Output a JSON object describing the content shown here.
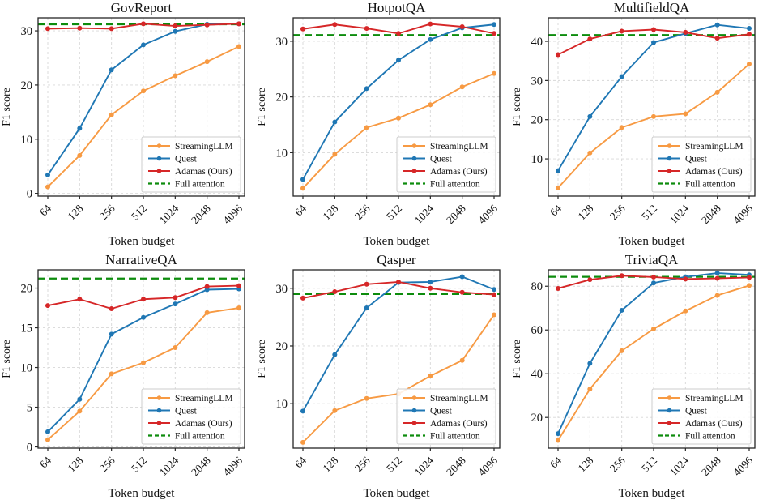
{
  "figure": {
    "rows": 2,
    "cols": 3,
    "background": "#ffffff"
  },
  "colors": {
    "streamingllm": "#f79a43",
    "quest": "#1f77b4",
    "adamas": "#d62728",
    "full_attention": "#0d8c0d",
    "grid": "#d8d8d8",
    "axis": "#262626",
    "legend_border": "#cccccc",
    "text": "#111111"
  },
  "legend": {
    "position": "lower-right",
    "items": [
      {
        "label": "StreamingLLM",
        "style": "solid-marker",
        "color_key": "streamingllm"
      },
      {
        "label": "Quest",
        "style": "solid-marker",
        "color_key": "quest"
      },
      {
        "label": "Adamas (Ours)",
        "style": "solid-marker",
        "color_key": "adamas"
      },
      {
        "label": "Full attention",
        "style": "dashed",
        "color_key": "full_attention"
      }
    ]
  },
  "axes_shared": {
    "xlabel": "Token budget",
    "ylabel": "F1 score",
    "x_tick_labels": [
      "64",
      "128",
      "256",
      "512",
      "1024",
      "2048",
      "4096"
    ],
    "grid": true
  },
  "chart_data": [
    {
      "type": "line",
      "title": "GovReport",
      "xlabel": "Token budget",
      "ylabel": "F1 score",
      "x": [
        64,
        128,
        256,
        512,
        1024,
        2048,
        4096
      ],
      "ylim": [
        -0.5,
        32.4
      ],
      "yticks": [
        0,
        10,
        20,
        30
      ],
      "full_attention": 31.2,
      "series": [
        {
          "name": "StreamingLLM",
          "color_key": "streamingllm",
          "values": [
            1.2,
            7.0,
            14.5,
            18.9,
            21.7,
            24.3,
            27.1
          ]
        },
        {
          "name": "Quest",
          "color_key": "quest",
          "values": [
            3.4,
            12.0,
            22.8,
            27.4,
            29.9,
            31.2,
            31.3
          ]
        },
        {
          "name": "Adamas (Ours)",
          "color_key": "adamas",
          "values": [
            30.4,
            30.5,
            30.4,
            31.3,
            30.9,
            31.1,
            31.3
          ]
        }
      ]
    },
    {
      "type": "line",
      "title": "HotpotQA",
      "xlabel": "Token budget",
      "ylabel": "F1 score",
      "x": [
        64,
        128,
        256,
        512,
        1024,
        2048,
        4096
      ],
      "ylim": [
        2.2,
        34.2
      ],
      "yticks": [
        10,
        20,
        30
      ],
      "full_attention": 31.1,
      "series": [
        {
          "name": "StreamingLLM",
          "color_key": "streamingllm",
          "values": [
            3.6,
            9.7,
            14.5,
            16.2,
            18.6,
            21.8,
            24.2
          ]
        },
        {
          "name": "Quest",
          "color_key": "quest",
          "values": [
            5.2,
            15.5,
            21.5,
            26.6,
            30.3,
            32.4,
            33.0
          ]
        },
        {
          "name": "Adamas (Ours)",
          "color_key": "adamas",
          "values": [
            32.2,
            33.0,
            32.3,
            31.4,
            33.1,
            32.6,
            31.4
          ]
        }
      ]
    },
    {
      "type": "line",
      "title": "MultifieldQA",
      "xlabel": "Token budget",
      "ylabel": "F1 score",
      "x": [
        64,
        128,
        256,
        512,
        1024,
        2048,
        4096
      ],
      "ylim": [
        0.5,
        46.0
      ],
      "yticks": [
        10,
        20,
        30,
        40
      ],
      "full_attention": 41.6,
      "series": [
        {
          "name": "StreamingLLM",
          "color_key": "streamingllm",
          "values": [
            2.6,
            11.5,
            18.0,
            20.8,
            21.5,
            27.0,
            34.2
          ]
        },
        {
          "name": "Quest",
          "color_key": "quest",
          "values": [
            7.0,
            20.8,
            31.0,
            39.7,
            42.0,
            44.2,
            43.3
          ]
        },
        {
          "name": "Adamas (Ours)",
          "color_key": "adamas",
          "values": [
            36.6,
            40.6,
            42.6,
            43.0,
            42.3,
            40.8,
            41.8
          ]
        }
      ]
    },
    {
      "type": "line",
      "title": "NarrativeQA",
      "xlabel": "Token budget",
      "ylabel": "F1 score",
      "x": [
        64,
        128,
        256,
        512,
        1024,
        2048,
        4096
      ],
      "ylim": [
        -0.15,
        22.3
      ],
      "yticks": [
        0,
        5,
        10,
        15,
        20
      ],
      "full_attention": 21.2,
      "series": [
        {
          "name": "StreamingLLM",
          "color_key": "streamingllm",
          "values": [
            0.9,
            4.5,
            9.2,
            10.6,
            12.5,
            16.9,
            17.5
          ]
        },
        {
          "name": "Quest",
          "color_key": "quest",
          "values": [
            1.9,
            6.0,
            14.2,
            16.3,
            18.0,
            19.8,
            19.9
          ]
        },
        {
          "name": "Adamas (Ours)",
          "color_key": "adamas",
          "values": [
            17.8,
            18.6,
            17.4,
            18.6,
            18.8,
            20.2,
            20.3
          ]
        }
      ]
    },
    {
      "type": "line",
      "title": "Qasper",
      "xlabel": "Token budget",
      "ylabel": "F1 score",
      "x": [
        64,
        128,
        256,
        512,
        1024,
        2048,
        4096
      ],
      "ylim": [
        2.3,
        33.2
      ],
      "yticks": [
        10,
        20,
        30
      ],
      "full_attention": 29.0,
      "series": [
        {
          "name": "StreamingLLM",
          "color_key": "streamingllm",
          "values": [
            3.3,
            8.8,
            10.9,
            11.7,
            14.8,
            17.5,
            25.4
          ]
        },
        {
          "name": "Quest",
          "color_key": "quest",
          "values": [
            8.7,
            18.5,
            26.6,
            31.0,
            31.1,
            32.0,
            29.8
          ]
        },
        {
          "name": "Adamas (Ours)",
          "color_key": "adamas",
          "values": [
            28.3,
            29.4,
            30.7,
            31.1,
            30.0,
            29.3,
            28.9
          ]
        }
      ]
    },
    {
      "type": "line",
      "title": "TriviaQA",
      "xlabel": "Token budget",
      "ylabel": "F1 score",
      "x": [
        64,
        128,
        256,
        512,
        1024,
        2048,
        4096
      ],
      "ylim": [
        6.0,
        87.5
      ],
      "yticks": [
        20,
        40,
        60,
        80
      ],
      "full_attention": 84.3,
      "series": [
        {
          "name": "StreamingLLM",
          "color_key": "streamingllm",
          "values": [
            9.5,
            33.0,
            50.5,
            60.5,
            68.7,
            75.8,
            80.3
          ]
        },
        {
          "name": "Quest",
          "color_key": "quest",
          "values": [
            12.6,
            44.7,
            69.0,
            81.5,
            84.3,
            86.0,
            85.2
          ]
        },
        {
          "name": "Adamas (Ours)",
          "color_key": "adamas",
          "values": [
            79.0,
            83.0,
            84.8,
            84.2,
            83.3,
            83.6,
            84.0
          ]
        }
      ]
    }
  ]
}
